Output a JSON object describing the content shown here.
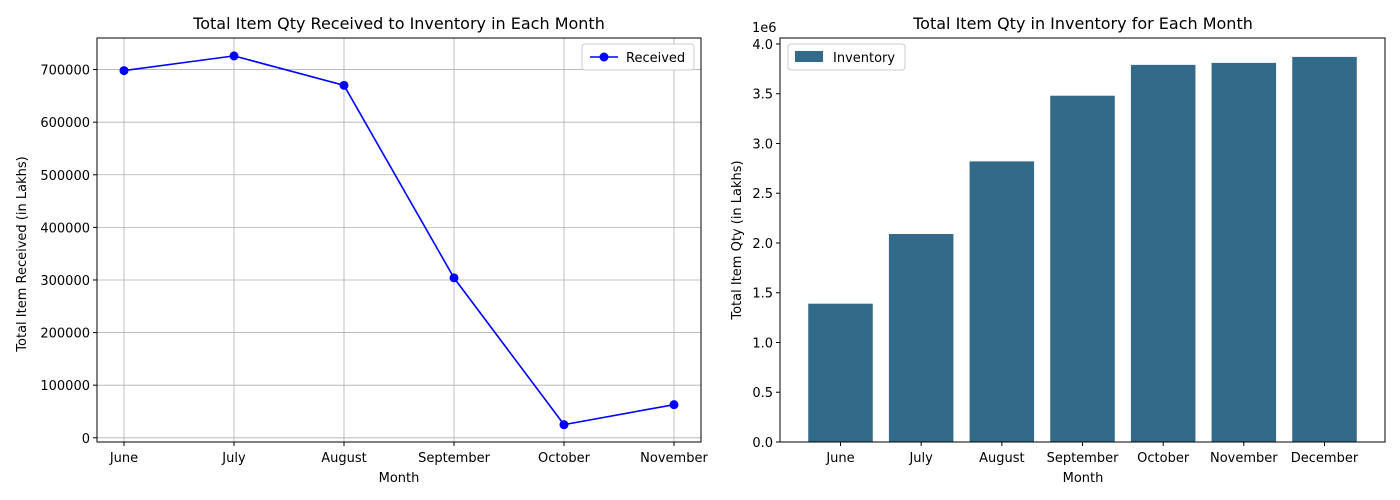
{
  "chart_data": [
    {
      "type": "line",
      "title": "Total Item Qty Received to Inventory in Each Month",
      "xlabel": "Month",
      "ylabel": "Total Item Received (in Lakhs)",
      "categories": [
        "June",
        "July",
        "August",
        "September",
        "October",
        "November"
      ],
      "series": [
        {
          "name": "Received",
          "values": [
            698000,
            726000,
            670000,
            304000,
            25000,
            63000
          ],
          "color": "#0000ff"
        }
      ],
      "ylim": [
        -8000,
        760000
      ],
      "yticks": [
        0,
        100000,
        200000,
        300000,
        400000,
        500000,
        600000,
        700000
      ],
      "ytick_labels": [
        "0",
        "100000",
        "200000",
        "300000",
        "400000",
        "500000",
        "600000",
        "700000"
      ],
      "grid": true,
      "legend": "top-right"
    },
    {
      "type": "bar",
      "title": "Total Item Qty in Inventory for Each Month",
      "xlabel": "Month",
      "ylabel": "Total Item Qty (in Lakhs)",
      "offset_label": "1e6",
      "categories": [
        "June",
        "July",
        "August",
        "September",
        "October",
        "November",
        "December"
      ],
      "series": [
        {
          "name": "Inventory",
          "values": [
            1390000,
            2090000,
            2820000,
            3480000,
            3790000,
            3810000,
            3870000
          ],
          "color": "#336a8a"
        }
      ],
      "ylim": [
        0,
        4060000
      ],
      "yticks": [
        0,
        500000,
        1000000,
        1500000,
        2000000,
        2500000,
        3000000,
        3500000,
        4000000
      ],
      "ytick_labels": [
        "0.0",
        "0.5",
        "1.0",
        "1.5",
        "2.0",
        "2.5",
        "3.0",
        "3.5",
        "4.0"
      ],
      "grid": false,
      "legend": "top-left"
    }
  ]
}
